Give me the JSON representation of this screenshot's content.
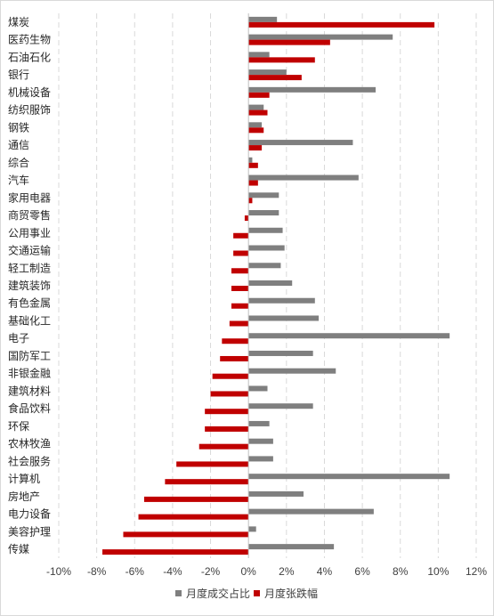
{
  "chart_data": {
    "type": "bar",
    "orientation": "horizontal",
    "categories": [
      "煤炭",
      "医药生物",
      "石油石化",
      "银行",
      "机械设备",
      "纺织服饰",
      "钢铁",
      "通信",
      "综合",
      "汽车",
      "家用电器",
      "商贸零售",
      "公用事业",
      "交通运输",
      "轻工制造",
      "建筑装饰",
      "有色金属",
      "基础化工",
      "电子",
      "国防军工",
      "非银金融",
      "建筑材料",
      "食品饮料",
      "环保",
      "农林牧渔",
      "社会服务",
      "计算机",
      "房地产",
      "电力设备",
      "美容护理",
      "传媒"
    ],
    "series": [
      {
        "name": "月度成交占比",
        "color": "#7f7f7f",
        "values": [
          1.5,
          7.6,
          1.1,
          2.0,
          6.7,
          0.8,
          0.7,
          5.5,
          0.2,
          5.8,
          1.6,
          1.6,
          1.8,
          1.9,
          1.7,
          2.3,
          3.5,
          3.7,
          10.6,
          3.4,
          4.6,
          1.0,
          3.4,
          1.1,
          1.3,
          1.3,
          10.6,
          2.9,
          6.6,
          0.4,
          4.5
        ]
      },
      {
        "name": "月度张跌幅",
        "color": "#c00000",
        "values": [
          9.8,
          4.3,
          3.5,
          2.8,
          1.1,
          1.0,
          0.8,
          0.7,
          0.5,
          0.5,
          0.2,
          -0.2,
          -0.8,
          -0.8,
          -0.9,
          -0.9,
          -0.9,
          -1.0,
          -1.4,
          -1.5,
          -1.9,
          -2.0,
          -2.3,
          -2.3,
          -2.6,
          -3.8,
          -4.4,
          -5.5,
          -5.8,
          -6.6,
          -7.7
        ]
      }
    ],
    "x_ticks": [
      "-10%",
      "-8%",
      "-6%",
      "-4%",
      "-2%",
      "0%",
      "2%",
      "4%",
      "6%",
      "8%",
      "10%",
      "12%"
    ],
    "xlim": [
      -10,
      12
    ],
    "x_unit": "%",
    "grid": "vertical dashed",
    "legend_position": "bottom"
  }
}
